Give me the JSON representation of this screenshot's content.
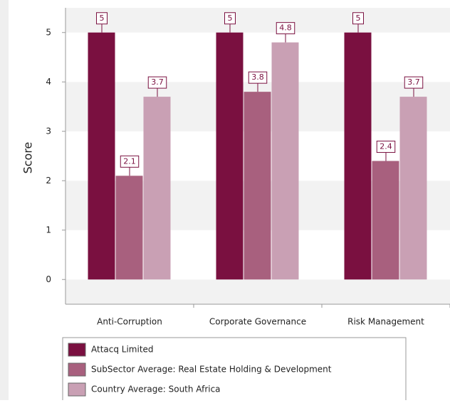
{
  "chart_data": {
    "type": "bar",
    "y_label": "Score",
    "categories": [
      "Anti-Corruption",
      "Corporate Governance",
      "Risk Management"
    ],
    "series": [
      {
        "name": "Attacq Limited",
        "color": "#7a1040",
        "values": [
          5,
          5,
          5
        ]
      },
      {
        "name": "SubSector Average: Real Estate Holding & Development",
        "color": "#a8607e",
        "values": [
          2.1,
          3.8,
          2.4
        ]
      },
      {
        "name": "Country Average: South Africa",
        "color": "#c9a0b4",
        "values": [
          3.7,
          4.8,
          3.7
        ]
      }
    ],
    "ylim": [
      -0.5,
      5.5
    ],
    "yticks": [
      0,
      1,
      2,
      3,
      4,
      5
    ],
    "grid": true
  }
}
